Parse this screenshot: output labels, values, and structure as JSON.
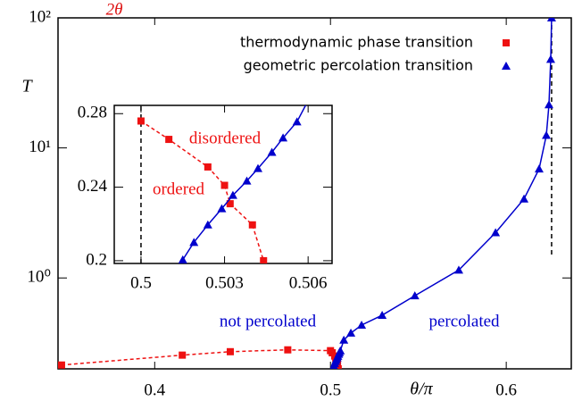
{
  "chart_data": [
    {
      "type": "line",
      "x_label": "θ/π",
      "y_label": "T",
      "log_y": true,
      "xlim": [
        0.345,
        0.637
      ],
      "ylim": [
        0.2,
        100
      ],
      "xticks": [
        0.4,
        0.5,
        0.6
      ],
      "yticks": [
        {
          "value": 1,
          "label": "10⁰"
        },
        {
          "value": 10,
          "label": "10¹"
        },
        {
          "value": 100,
          "label": "10²"
        }
      ],
      "legend": "upper right",
      "vline": 0.6258,
      "annotations": [
        {
          "text": "not percolated",
          "color": "#0000cc"
        },
        {
          "text": "percolated",
          "color": "#0000cc"
        },
        {
          "text": "2θ",
          "color": "#dd1111"
        }
      ],
      "series": [
        {
          "name": "thermodynamic phase transition",
          "color": "#ee1111",
          "marker": "square",
          "linestyle": "dashed",
          "x": [
            0.347,
            0.4157,
            0.443,
            0.4757,
            0.5,
            0.501,
            0.5024,
            0.503,
            0.5032,
            0.504,
            0.5044
          ],
          "values": [
            0.214,
            0.255,
            0.271,
            0.28,
            0.276,
            0.266,
            0.251,
            0.241,
            0.231,
            0.2195,
            0.2
          ]
        },
        {
          "name": "geometric percolation transition",
          "color": "#0000cc",
          "marker": "triangle",
          "linestyle": "solid",
          "x": [
            0.5015,
            0.5019,
            0.5024,
            0.5029,
            0.5033,
            0.5038,
            0.5042,
            0.5047,
            0.5051,
            0.5056,
            0.5076,
            0.5116,
            0.5177,
            0.5294,
            0.548,
            0.573,
            0.5939,
            0.6101,
            0.6187,
            0.6228,
            0.6243,
            0.6253,
            0.6258
          ],
          "values": [
            0.2005,
            0.21,
            0.2195,
            0.2283,
            0.2356,
            0.2434,
            0.2502,
            0.259,
            0.2668,
            0.2756,
            0.333,
            0.377,
            0.434,
            0.517,
            0.73,
            1.15,
            2.23,
            4.05,
            6.9,
            12.5,
            21.5,
            48,
            100
          ]
        }
      ]
    },
    {
      "type": "line",
      "xlim": [
        0.49904,
        0.50686
      ],
      "ylim": [
        0.1985,
        0.2845
      ],
      "xticks": [
        0.5,
        0.503,
        0.506
      ],
      "yticks": [
        0.2,
        0.24,
        0.28
      ],
      "vline": 0.5,
      "annotations": [
        {
          "text": "disordered",
          "color": "#ee1111"
        },
        {
          "text": "ordered",
          "color": "#ee1111"
        }
      ],
      "series": [
        {
          "color": "#ee1111",
          "marker": "square",
          "linestyle": "dashed",
          "x": [
            0.5,
            0.501,
            0.5024,
            0.503,
            0.5032,
            0.504,
            0.5044
          ],
          "values": [
            0.276,
            0.266,
            0.251,
            0.241,
            0.231,
            0.2195,
            0.2
          ]
        },
        {
          "color": "#0000cc",
          "marker": "triangle",
          "linestyle": "solid",
          "x": [
            0.5015,
            0.5019,
            0.5024,
            0.5029,
            0.5033,
            0.5038,
            0.5042,
            0.5047,
            0.5051,
            0.5056,
            0.5076
          ],
          "values": [
            0.2005,
            0.21,
            0.2195,
            0.2283,
            0.2356,
            0.2434,
            0.2502,
            0.259,
            0.2668,
            0.2756,
            0.333
          ]
        }
      ]
    }
  ]
}
